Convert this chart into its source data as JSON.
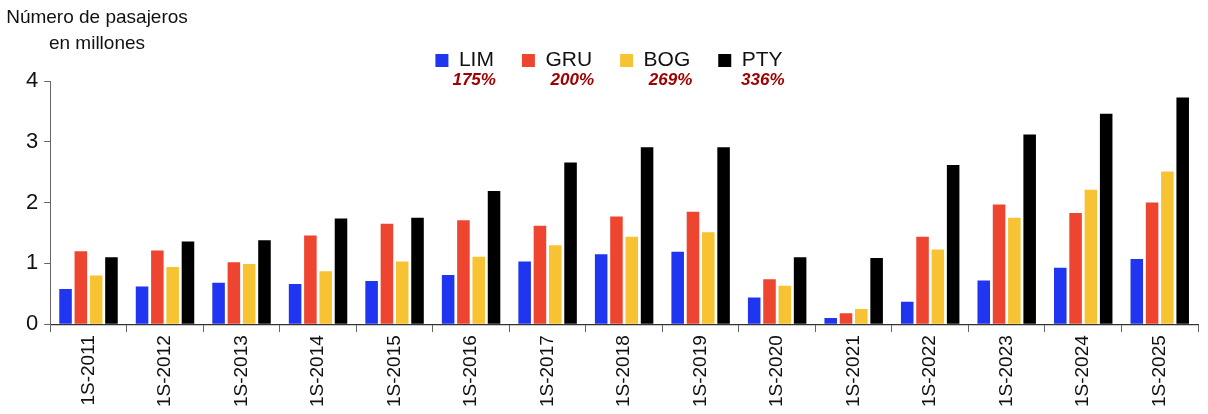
{
  "chart_data": {
    "type": "bar",
    "ylabel": "Número de pasajeros en millones",
    "categories": [
      "1S-2011",
      "1S-2012",
      "1S-2013",
      "1S-2014",
      "1S-2015",
      "1S-2016",
      "1S-2017",
      "1S-2018",
      "1S-2019",
      "1S-2020",
      "1S-2021",
      "1S-2022",
      "1S-2023",
      "1S-2024",
      "1S-2025"
    ],
    "series": [
      {
        "name": "LIM",
        "color": "#1f35f0",
        "values": [
          0.58,
          0.62,
          0.68,
          0.66,
          0.71,
          0.81,
          1.03,
          1.15,
          1.19,
          0.44,
          0.1,
          0.37,
          0.72,
          0.93,
          1.07
        ]
      },
      {
        "name": "GRU",
        "color": "#ee4530",
        "values": [
          1.2,
          1.21,
          1.02,
          1.46,
          1.65,
          1.71,
          1.62,
          1.77,
          1.85,
          0.74,
          0.18,
          1.44,
          1.97,
          1.83,
          2.0
        ]
      },
      {
        "name": "BOG",
        "color": "#f7c332",
        "values": [
          0.8,
          0.94,
          0.99,
          0.87,
          1.03,
          1.11,
          1.3,
          1.44,
          1.51,
          0.63,
          0.25,
          1.23,
          1.75,
          2.21,
          2.51
        ]
      },
      {
        "name": "PTY",
        "color": "#000000",
        "values": [
          1.1,
          1.36,
          1.38,
          1.74,
          1.75,
          2.19,
          2.66,
          2.91,
          2.91,
          1.1,
          1.09,
          2.62,
          3.12,
          3.46,
          3.73
        ]
      }
    ],
    "annotations": [
      "175%",
      "200%",
      "269%",
      "336%"
    ],
    "ylim": [
      0,
      4
    ],
    "yticks": [
      0,
      1,
      2,
      3,
      4
    ],
    "grid": false,
    "legend": "top"
  }
}
